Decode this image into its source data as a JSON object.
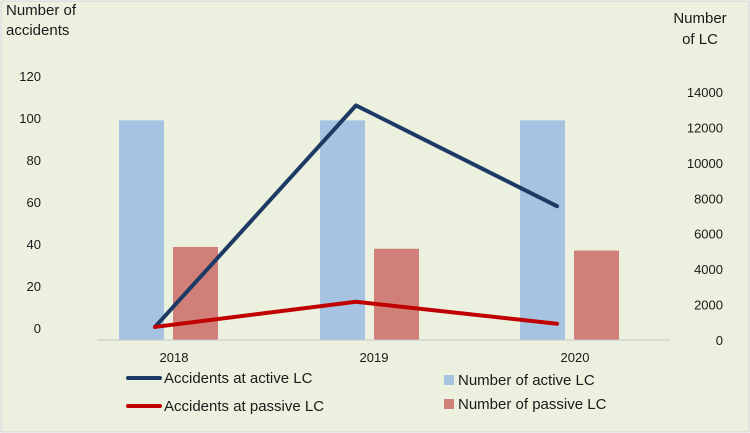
{
  "chart_data": {
    "type": "bar",
    "categories": [
      "2018",
      "2019",
      "2020"
    ],
    "left_axis": {
      "title_lines": [
        "Number of",
        "accidents"
      ],
      "ylim": [
        0,
        120
      ],
      "ticks": [
        0,
        20,
        40,
        60,
        80,
        100,
        120
      ]
    },
    "right_axis": {
      "title_lines": [
        "Number",
        "of LC"
      ],
      "ylim": [
        0,
        14000
      ],
      "ticks": [
        0,
        2000,
        4000,
        6000,
        8000,
        10000,
        12000,
        14000
      ]
    },
    "series": [
      {
        "name": "Number of active LC",
        "kind": "bar",
        "axis": "right",
        "color": "#a6c4e2",
        "values": [
          12400,
          12400,
          12400
        ]
      },
      {
        "name": "Number of passive LC",
        "kind": "bar",
        "axis": "right",
        "color": "#d07f79",
        "values": [
          5250,
          5150,
          5050
        ]
      },
      {
        "name": "Accidents at active LC",
        "kind": "line",
        "axis": "left",
        "color": "#1c3a63",
        "values": [
          0.5,
          106,
          58
        ]
      },
      {
        "name": "Accidents at passive LC",
        "kind": "line",
        "axis": "left",
        "color": "#c00000",
        "values": [
          0.5,
          12.5,
          2
        ]
      }
    ],
    "legend_order": [
      "Accidents at active LC",
      "Number of active LC",
      "Accidents at passive LC",
      "Number of passive LC"
    ],
    "legend_position": "bottom",
    "grid": false,
    "background": "#ebf1de"
  }
}
